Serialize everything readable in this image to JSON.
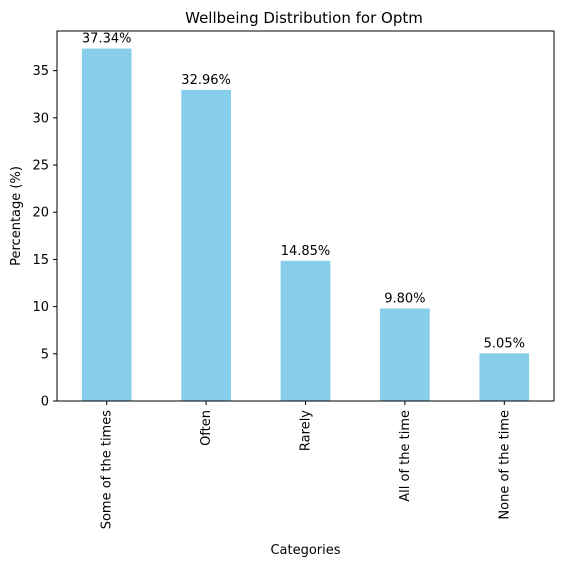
{
  "chart_data": {
    "type": "bar",
    "title": "Wellbeing Distribution for Optm",
    "xlabel": "Categories",
    "ylabel": "Percentage (%)",
    "categories": [
      "Some of the times",
      "Often",
      "Rarely",
      "All of the time",
      "None of the time"
    ],
    "values": [
      37.34,
      32.96,
      14.85,
      9.8,
      5.05
    ],
    "data_labels": [
      "37.34%",
      "32.96%",
      "14.85%",
      "9.80%",
      "5.05%"
    ],
    "ylim": [
      0,
      39.2
    ],
    "yticks": [
      0,
      5,
      10,
      15,
      20,
      25,
      30,
      35
    ],
    "grid": false,
    "legend": "none",
    "bar_color": "#87CEEB",
    "x_tick_rotation": 90
  }
}
